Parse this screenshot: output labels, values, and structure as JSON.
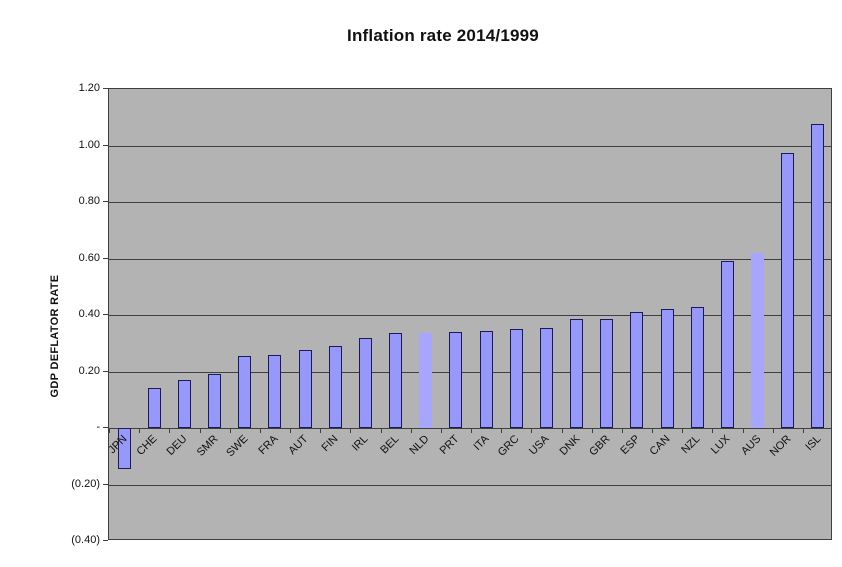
{
  "page": {
    "background_color": "#ffffff"
  },
  "chart_data": {
    "type": "bar",
    "title": "Inflation rate 2014/1999",
    "xlabel": "",
    "ylabel": "GDP DEFLATOR RATE",
    "ylim": [
      -0.4,
      1.2
    ],
    "ytick_interval": 0.2,
    "ytick_labels": [
      "1.20",
      "1.00",
      "0.80",
      "0.60",
      "0.40",
      "0.20",
      "-",
      "(0.20)",
      "(0.40)"
    ],
    "grid": true,
    "legend": false,
    "plot_bg_color": "#b3b3b3",
    "grid_color": "#3f3f3f",
    "bar_fill": "#9799fa",
    "bar_border": "#1a1a5a",
    "bar_fill_borderless": "#a6a6fd",
    "borderless_bars": [
      "NLD",
      "AUS"
    ],
    "categories": [
      "JPN",
      "CHE",
      "DEU",
      "SMR",
      "SWE",
      "FRA",
      "AUT",
      "FIN",
      "IRL",
      "BEL",
      "NLD",
      "PRT",
      "ITA",
      "GRC",
      "USA",
      "DNK",
      "GBR",
      "ESP",
      "CAN",
      "NZL",
      "LUX",
      "AUS",
      "NOR",
      "ISL"
    ],
    "values": [
      -0.145,
      0.14,
      0.17,
      0.19,
      0.255,
      0.26,
      0.275,
      0.29,
      0.32,
      0.335,
      0.335,
      0.34,
      0.345,
      0.35,
      0.355,
      0.385,
      0.385,
      0.41,
      0.42,
      0.43,
      0.59,
      0.62,
      0.975,
      1.075
    ]
  }
}
